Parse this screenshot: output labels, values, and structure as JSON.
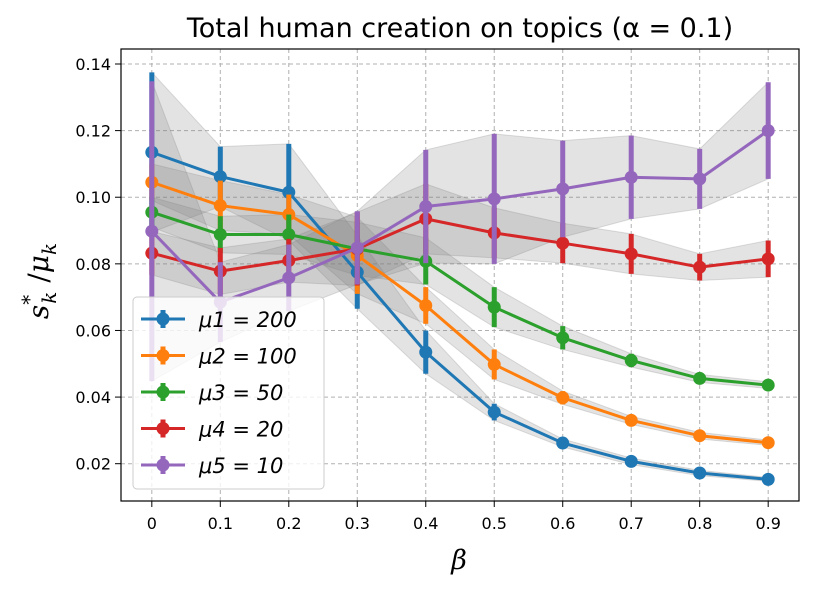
{
  "chart_data": {
    "type": "line",
    "title": "Total human creation on topics (α = 0.1)",
    "xlabel": "β",
    "ylabel": "s*_k / μ_k",
    "x": [
      0,
      0.1,
      0.2,
      0.3,
      0.4,
      0.5,
      0.6,
      0.7,
      0.8,
      0.9
    ],
    "x_tick_labels": [
      "0",
      "0.1",
      "0.2",
      "0.3",
      "0.4",
      "0.5",
      "0.6",
      "0.7",
      "0.8",
      "0.9"
    ],
    "y_ticks": [
      0.02,
      0.04,
      0.06,
      0.08,
      0.1,
      0.12,
      0.14
    ],
    "y_tick_labels": [
      "0.02",
      "0.04",
      "0.06",
      "0.08",
      "0.10",
      "0.12",
      "0.14"
    ],
    "xlim": [
      -0.045,
      0.945
    ],
    "ylim": [
      0.0088,
      0.1445
    ],
    "grid": true,
    "legend_position": "lower-left",
    "series": [
      {
        "name": "μ1 = 200",
        "color": "#1f77b4",
        "values": [
          0.1135,
          0.1062,
          0.1015,
          0.0775,
          0.0535,
          0.0355,
          0.0262,
          0.0207,
          0.0172,
          0.0153
        ],
        "errors": [
          0.024,
          0.009,
          0.0145,
          0.011,
          0.0065,
          0.0025,
          0.0012,
          0.001,
          0.0008,
          0.0006
        ]
      },
      {
        "name": "μ2 = 100",
        "color": "#ff7f0e",
        "values": [
          0.1045,
          0.0975,
          0.0948,
          0.0825,
          0.0675,
          0.0498,
          0.0398,
          0.033,
          0.0284,
          0.0263
        ],
        "errors": [
          0.0055,
          0.0075,
          0.006,
          0.0115,
          0.0055,
          0.0045,
          0.002,
          0.0012,
          0.001,
          0.0008
        ]
      },
      {
        "name": "μ3 = 50",
        "color": "#2ca02c",
        "values": [
          0.0955,
          0.0888,
          0.0888,
          0.0845,
          0.0808,
          0.067,
          0.0578,
          0.051,
          0.0456,
          0.0436
        ],
        "errors": [
          0.0045,
          0.0055,
          0.006,
          0.008,
          0.007,
          0.006,
          0.0035,
          0.002,
          0.0012,
          0.001
        ]
      },
      {
        "name": "μ4 = 20",
        "color": "#d62728",
        "values": [
          0.0832,
          0.0778,
          0.081,
          0.0845,
          0.0935,
          0.0893,
          0.0862,
          0.083,
          0.079,
          0.0815
        ],
        "errors": [
          0.0065,
          0.007,
          0.0065,
          0.011,
          0.0105,
          0.0075,
          0.006,
          0.006,
          0.004,
          0.0055
        ]
      },
      {
        "name": "μ5 = 10",
        "color": "#9467bd",
        "values": [
          0.0898,
          0.0685,
          0.0758,
          0.0848,
          0.0972,
          0.0995,
          0.1025,
          0.106,
          0.1055,
          0.12
        ],
        "errors": [
          0.045,
          0.012,
          0.01,
          0.011,
          0.017,
          0.0195,
          0.0145,
          0.0125,
          0.009,
          0.0145
        ]
      }
    ]
  }
}
